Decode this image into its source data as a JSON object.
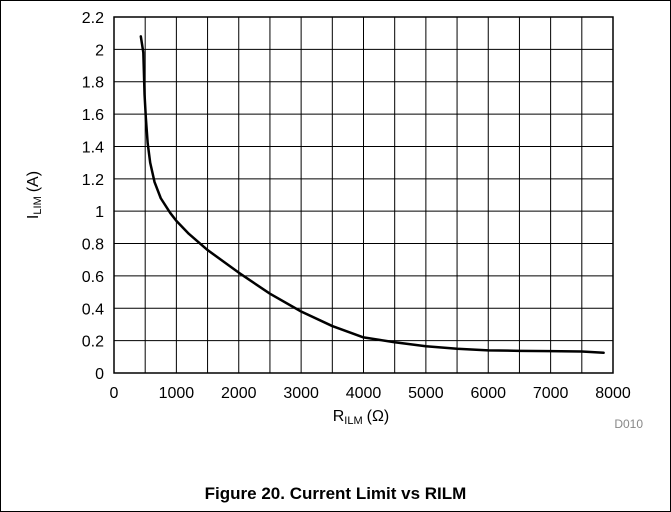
{
  "chart_data": {
    "type": "line",
    "xlabel": {
      "main": "R",
      "sub": "ILM",
      "unit": "(Ω)"
    },
    "ylabel": {
      "main": "I",
      "sub": "LIM",
      "unit": "(A)"
    },
    "xlim": [
      0,
      8000
    ],
    "ylim": [
      0,
      2.2
    ],
    "x_ticks": [
      0,
      1000,
      2000,
      3000,
      4000,
      5000,
      6000,
      7000,
      8000
    ],
    "y_ticks": [
      0,
      0.2,
      0.4,
      0.6,
      0.8,
      1,
      1.2,
      1.4,
      1.6,
      1.8,
      2,
      2.2
    ],
    "x_tick_labels": [
      "0",
      "1000",
      "2000",
      "3000",
      "4000",
      "5000",
      "6000",
      "7000",
      "8000"
    ],
    "y_tick_labels": [
      "0",
      "0.2",
      "0.4",
      "0.6",
      "0.8",
      "1",
      "1.2",
      "1.4",
      "1.6",
      "1.8",
      "2",
      "2.2"
    ],
    "grid": true,
    "series": [
      {
        "color": "#000000",
        "x": [
          430,
          470,
          490,
          510,
          540,
          580,
          650,
          750,
          900,
          1000,
          1200,
          1500,
          2000,
          2500,
          3000,
          3500,
          4000,
          4500,
          5000,
          5500,
          6000,
          6500,
          7000,
          7500,
          7850
        ],
        "y": [
          2.08,
          1.98,
          1.72,
          1.58,
          1.42,
          1.3,
          1.18,
          1.08,
          0.99,
          0.94,
          0.86,
          0.76,
          0.62,
          0.49,
          0.38,
          0.29,
          0.22,
          0.19,
          0.165,
          0.15,
          0.14,
          0.137,
          0.135,
          0.133,
          0.125
        ]
      }
    ],
    "annotation": "D010"
  },
  "caption": "Figure 20. Current Limit vs RILM"
}
